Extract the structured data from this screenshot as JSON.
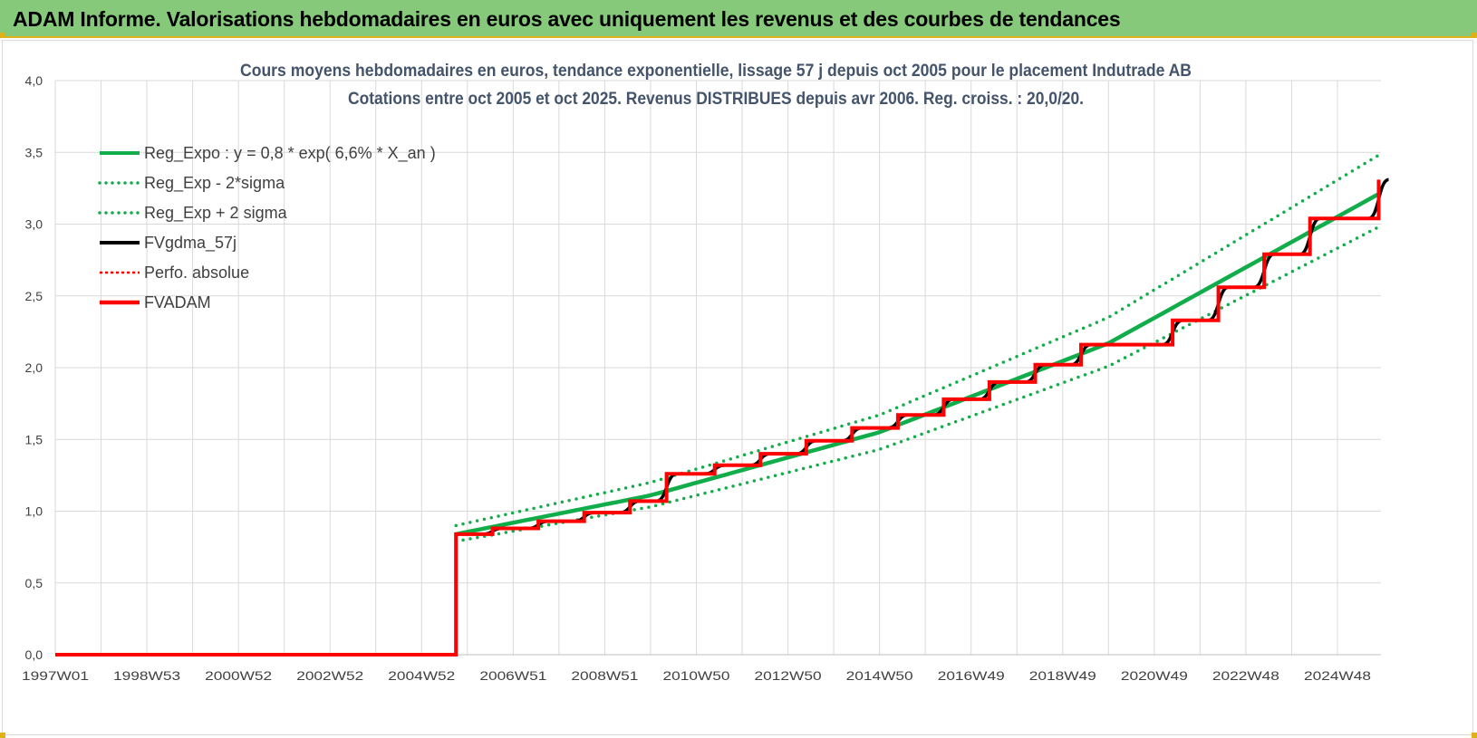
{
  "banner": {
    "title": "ADAM Informe. Valorisations hebdomadaires en euros avec uniquement les revenus et des courbes de tendances"
  },
  "colors": {
    "banner_bg": "#86c97a",
    "green": "#12ad4b",
    "red": "#ff0000",
    "black": "#000000",
    "grid": "#d9d9d9",
    "text": "#404040"
  },
  "chart_data": {
    "type": "line",
    "title": "Cours moyens hebdomadaires en euros, tendance exponentielle, lissage 57 j depuis oct 2005 pour le placement Indutrade AB",
    "subtitle": "Cotations entre oct 2005 et oct 2025. Revenus DISTRIBUES depuis avr 2006. Reg. croiss. : 20,0/20.",
    "x_range": [
      1997.0,
      2025.95
    ],
    "x_tick_labels": [
      "1997W01",
      "1998W53",
      "2000W52",
      "2002W52",
      "2004W52",
      "2006W51",
      "2008W51",
      "2010W50",
      "2012W50",
      "2014W50",
      "2016W49",
      "2018W49",
      "2020W49",
      "2022W48",
      "2024W48"
    ],
    "y_range": [
      0,
      4.0
    ],
    "y_ticks": [
      "0,0",
      "0,5",
      "1,0",
      "1,5",
      "2,0",
      "2,5",
      "3,0",
      "3,5",
      "4,0"
    ],
    "grid": true,
    "legend_position": "top-left",
    "legend": [
      {
        "label": "Reg_Expo : y = 0,8 * exp( 6,6% *  X_an )",
        "style": "solid",
        "color": "#12ad4b"
      },
      {
        "label": "Reg_Exp - 2*sigma",
        "style": "dotted",
        "color": "#12ad4b"
      },
      {
        "label": "Reg_Exp + 2 sigma",
        "style": "dotted",
        "color": "#12ad4b"
      },
      {
        "label": "FVgdma_57j",
        "style": "solid",
        "color": "#000000"
      },
      {
        "label": "Perfo. absolue",
        "style": "dotted",
        "color": "#ff0000"
      },
      {
        "label": "FVADAM",
        "style": "solid-thick",
        "color": "#ff0000"
      }
    ],
    "series": [
      {
        "name": "Reg_Expo : y = 0,8 * exp( 6,6% *  X_an )",
        "x": [
          2005.75,
          2010,
          2015,
          2020,
          2025.9
        ],
        "values": [
          0.84,
          1.11,
          1.55,
          2.17,
          3.21
        ]
      },
      {
        "name": "Reg_Exp - 2*sigma",
        "x": [
          2005.75,
          2010,
          2015,
          2020,
          2025.9
        ],
        "values": [
          0.79,
          1.03,
          1.43,
          2.01,
          2.98
        ]
      },
      {
        "name": "Reg_Exp + 2 sigma",
        "x": [
          2005.75,
          2010,
          2015,
          2020,
          2025.9
        ],
        "values": [
          0.9,
          1.2,
          1.67,
          2.35,
          3.48
        ]
      },
      {
        "name": "FVADAM",
        "x": [
          1997.0,
          2005.75,
          2005.75,
          2006.55,
          2007.55,
          2008.55,
          2009.55,
          2010.35,
          2011.4,
          2012.4,
          2013.4,
          2014.4,
          2015.4,
          2016.4,
          2017.4,
          2018.4,
          2019.4,
          2020.4,
          2021.4,
          2022.4,
          2023.4,
          2024.4,
          2025.9
        ],
        "values": [
          0.0,
          0.0,
          0.84,
          0.88,
          0.93,
          0.99,
          1.07,
          1.26,
          1.32,
          1.4,
          1.49,
          1.58,
          1.67,
          1.78,
          1.9,
          2.02,
          2.16,
          2.16,
          2.33,
          2.56,
          2.79,
          3.04,
          3.31
        ]
      },
      {
        "name": "FVgdma_57j",
        "x": [
          1997.0,
          2005.75,
          2005.75,
          2006.55,
          2007.55,
          2008.55,
          2009.55,
          2010.35,
          2011.4,
          2012.4,
          2013.4,
          2014.4,
          2015.4,
          2016.4,
          2017.4,
          2018.4,
          2019.4,
          2020.4,
          2021.4,
          2022.4,
          2023.4,
          2024.4,
          2025.9
        ],
        "values": [
          0.0,
          0.0,
          0.84,
          0.88,
          0.93,
          0.99,
          1.07,
          1.26,
          1.32,
          1.4,
          1.49,
          1.58,
          1.67,
          1.78,
          1.9,
          2.02,
          2.16,
          2.16,
          2.33,
          2.56,
          2.79,
          3.04,
          3.31
        ]
      }
    ]
  }
}
